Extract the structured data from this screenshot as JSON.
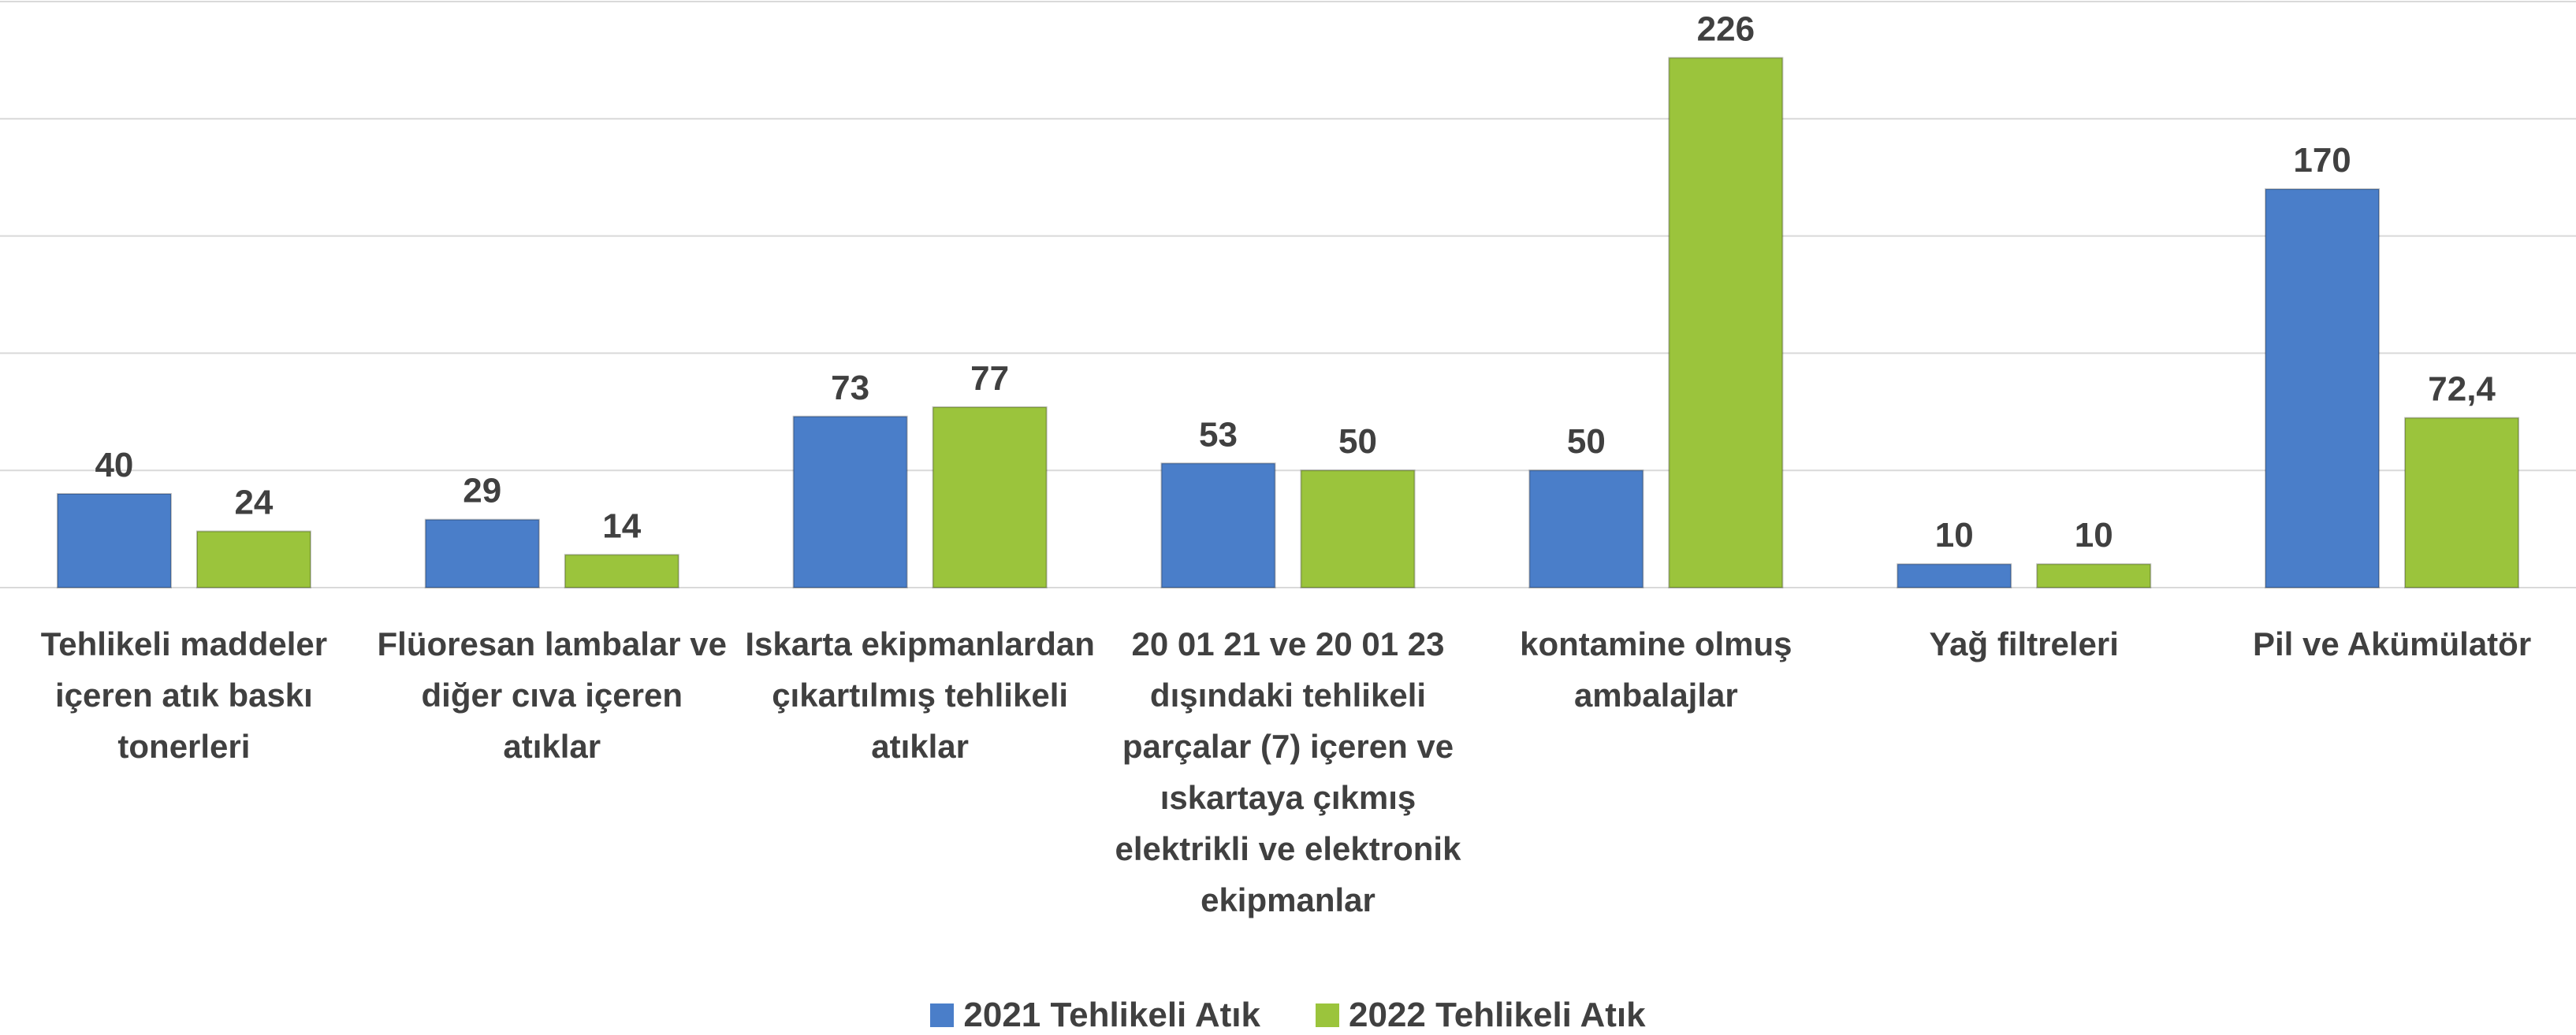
{
  "chart_data": {
    "type": "bar",
    "categories": [
      "Tehlikeli maddeler içeren atık baskı tonerleri",
      "Flüoresan lambalar ve diğer cıva içeren atıklar",
      "Iskarta ekipmanlardan çıkartılmış tehlikeli atıklar",
      "20 01 21 ve 20 01 23 dışındaki tehlikeli parçalar (7) içeren ve ıskartaya çıkmış elektrikli ve elektronik ekipmanlar",
      "kontamine olmuş ambalajlar",
      "Yağ filtreleri",
      "Pil ve Akümülatör"
    ],
    "series": [
      {
        "name": "2021 Tehlikeli Atık",
        "color": "#4a7ec9",
        "values": [
          40,
          29,
          73,
          53,
          50,
          10,
          170
        ]
      },
      {
        "name": "2022 Tehlikeli Atık",
        "color": "#9bc43c",
        "values": [
          24,
          14,
          77,
          50,
          226,
          10,
          72.4
        ],
        "value_labels": [
          "24",
          "14",
          "77",
          "50",
          "226",
          "10",
          "72,4"
        ]
      }
    ],
    "ylim": [
      0,
      250
    ],
    "yticks": [
      0,
      50,
      100,
      150,
      200,
      250
    ],
    "grid": true,
    "legend": "bottom"
  }
}
